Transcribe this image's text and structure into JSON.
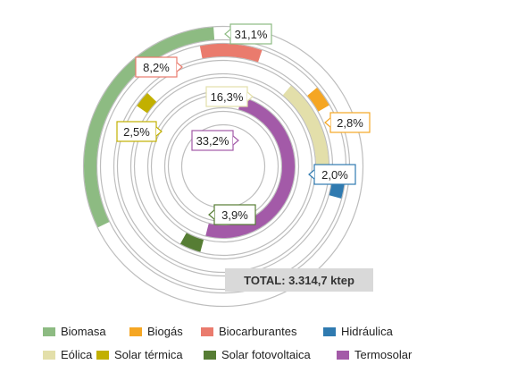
{
  "chart_data": {
    "type": "radial-bar",
    "unit": "%",
    "series": [
      {
        "name": "Biomasa",
        "value": "31,1%",
        "percent": 31.1,
        "color": "#8dbb82"
      },
      {
        "name": "Biocarburantes",
        "value": "8,2%",
        "percent": 8.2,
        "color": "#ea7b6d"
      },
      {
        "name": "Biogás",
        "value": "2,8%",
        "percent": 2.8,
        "color": "#f5a623"
      },
      {
        "name": "Eólica",
        "value": "16,3%",
        "percent": 16.3,
        "color": "#e3dfaa"
      },
      {
        "name": "Solar térmica",
        "value": "2,5%",
        "percent": 2.5,
        "color": "#c2b000"
      },
      {
        "name": "Hidráulica",
        "value": "2,0%",
        "percent": 2.0,
        "color": "#2f7ab0"
      },
      {
        "name": "Termosolar",
        "value": "33,2%",
        "percent": 33.2,
        "color": "#a35aa8"
      },
      {
        "name": "Solar fotovoltaica",
        "value": "3,9%",
        "percent": 3.9,
        "color": "#567d34"
      }
    ],
    "total_label": "TOTAL: 3.314,7 ktep",
    "legend": [
      "Biomasa",
      "Biogás",
      "Biocarburantes",
      "Hidráulica",
      "Eólica",
      "Solar térmica",
      "Solar fotovoltaica",
      "Termosolar"
    ],
    "legend_position": "bottom"
  }
}
